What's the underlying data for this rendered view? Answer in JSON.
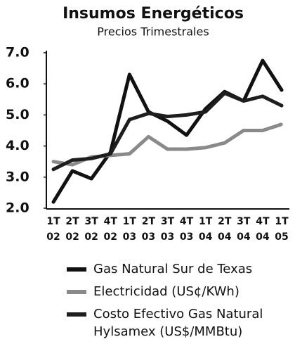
{
  "chart_data": {
    "type": "line",
    "title": "Insumos Energéticos",
    "subtitle": "Precios Trimestrales",
    "categories": [
      "1T\n02",
      "2T\n02",
      "3T\n02",
      "4T\n02",
      "1T\n03",
      "2T\n03",
      "3T\n03",
      "4T\n03",
      "1T\n04",
      "2T\n04",
      "3T\n04",
      "4T\n04",
      "1T\n05"
    ],
    "series": [
      {
        "name": "Gas Natural Sur de Texas",
        "color": "#111111",
        "values": [
          2.2,
          3.2,
          2.95,
          3.8,
          6.3,
          5.1,
          4.8,
          4.35,
          5.2,
          5.75,
          5.45,
          6.75,
          5.8
        ]
      },
      {
        "name": "Electricidad (US¢/KWh)",
        "color": "#8a8a8a",
        "values": [
          3.5,
          3.4,
          3.65,
          3.7,
          3.75,
          4.3,
          3.9,
          3.9,
          3.95,
          4.1,
          4.5,
          4.5,
          4.7
        ]
      },
      {
        "name": "Costo Efectivo Gas Natural\nHylsamex (US$/MMBtu)",
        "color": "#1e1e1e",
        "values": [
          3.25,
          3.55,
          3.6,
          3.75,
          4.85,
          5.05,
          4.95,
          5.0,
          5.1,
          5.7,
          5.45,
          5.6,
          5.3
        ]
      }
    ],
    "ylim": [
      2,
      7
    ],
    "yticks": [
      {
        "value": 2,
        "label": "2.0"
      },
      {
        "value": 3,
        "label": "3.0"
      },
      {
        "value": 4,
        "label": "4.0"
      },
      {
        "value": 5,
        "label": "5.0"
      },
      {
        "value": 6,
        "label": "6.0"
      },
      {
        "value": 7,
        "label": "7.0"
      }
    ]
  }
}
